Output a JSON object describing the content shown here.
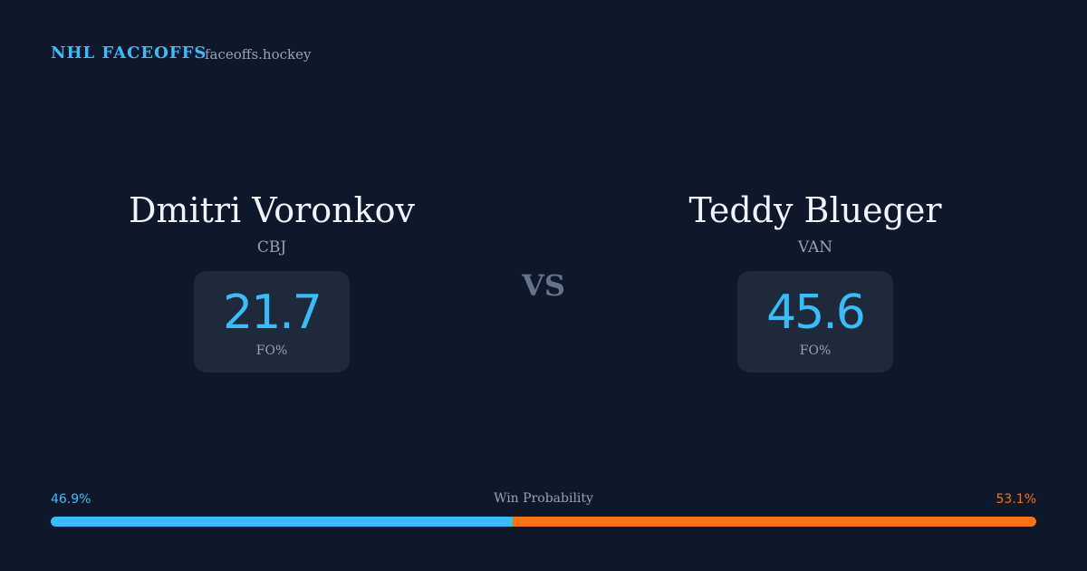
{
  "header": {
    "brand": "NHL FACEOFFS",
    "site": "faceoffs.hockey"
  },
  "players": [
    {
      "name": "Dmitri Voronkov",
      "team": "CBJ",
      "stat": 21.7,
      "stat_label": "FO%"
    },
    {
      "name": "Teddy Blueger",
      "team": "VAN",
      "stat": 45.6,
      "stat_label": "FO%"
    }
  ],
  "vs": "VS",
  "win_probability": {
    "label": "Win Probability",
    "left": {
      "value": 46.9,
      "label": "46.9%"
    },
    "right": {
      "value": 53.1,
      "label": "53.1%"
    }
  }
}
